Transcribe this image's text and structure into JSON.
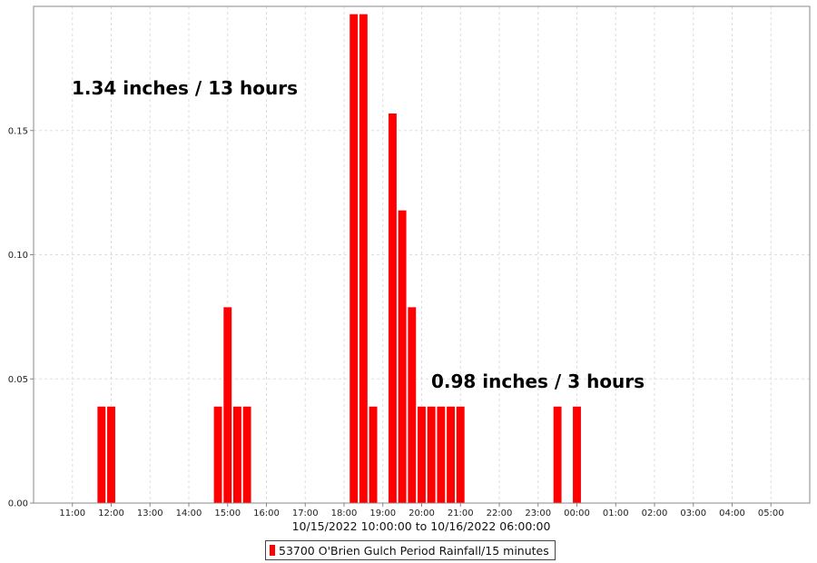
{
  "chart_data": {
    "type": "bar",
    "title": "",
    "xlabel": "10/15/2022 10:00:00 to 10/16/2022 06:00:00",
    "ylabel": "",
    "x_range": [
      "10/15/2022 10:00:00",
      "10/16/2022 06:00:00"
    ],
    "ylim": [
      0,
      0.2
    ],
    "y_ticks": [
      "0.00",
      "0.05",
      "0.10",
      "0.15"
    ],
    "x_ticks": [
      "11:00",
      "12:00",
      "13:00",
      "14:00",
      "15:00",
      "16:00",
      "17:00",
      "18:00",
      "19:00",
      "20:00",
      "21:00",
      "22:00",
      "23:00",
      "00:00",
      "01:00",
      "02:00",
      "03:00",
      "04:00",
      "05:00"
    ],
    "grid": true,
    "legend_position": "bottom-center",
    "series": [
      {
        "name": "53700 O'Brien Gulch Period Rainfall/15 minutes",
        "color": "#ff0000",
        "points": [
          {
            "x": "10/15/2022 11:45",
            "y": 0.039
          },
          {
            "x": "10/15/2022 12:00",
            "y": 0.039
          },
          {
            "x": "10/15/2022 14:45",
            "y": 0.039
          },
          {
            "x": "10/15/2022 15:00",
            "y": 0.079
          },
          {
            "x": "10/15/2022 15:15",
            "y": 0.039
          },
          {
            "x": "10/15/2022 15:30",
            "y": 0.039
          },
          {
            "x": "10/15/2022 18:15",
            "y": 0.197
          },
          {
            "x": "10/15/2022 18:30",
            "y": 0.197
          },
          {
            "x": "10/15/2022 18:45",
            "y": 0.039
          },
          {
            "x": "10/15/2022 19:15",
            "y": 0.157
          },
          {
            "x": "10/15/2022 19:30",
            "y": 0.118
          },
          {
            "x": "10/15/2022 19:45",
            "y": 0.079
          },
          {
            "x": "10/15/2022 20:00",
            "y": 0.039
          },
          {
            "x": "10/15/2022 20:15",
            "y": 0.039
          },
          {
            "x": "10/15/2022 20:30",
            "y": 0.039
          },
          {
            "x": "10/15/2022 20:45",
            "y": 0.039
          },
          {
            "x": "10/15/2022 21:00",
            "y": 0.039
          },
          {
            "x": "10/15/2022 23:30",
            "y": 0.039
          },
          {
            "x": "10/16/2022 00:00",
            "y": 0.039
          }
        ]
      }
    ],
    "annotations": [
      "1.34 inches / 13 hours",
      "0.98 inches / 3 hours"
    ]
  }
}
